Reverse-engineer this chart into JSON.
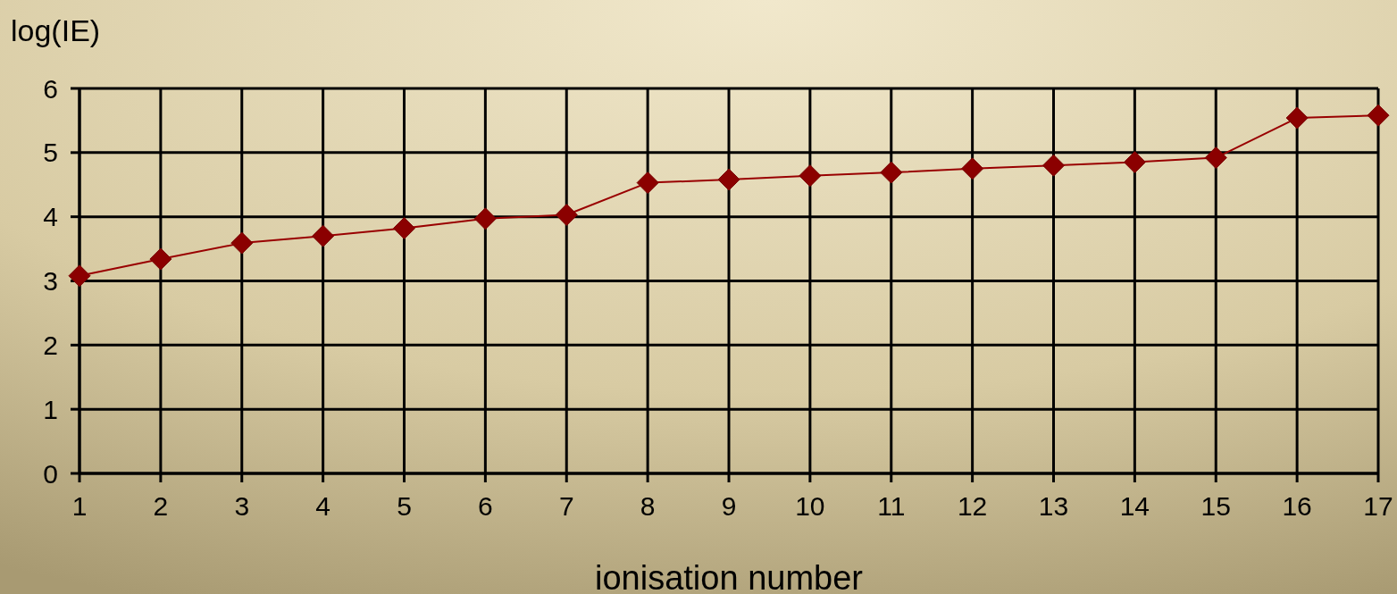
{
  "chart_data": {
    "type": "line",
    "xlabel": "ionisation number",
    "ylabel": "log(IE)",
    "x": [
      1,
      2,
      3,
      4,
      5,
      6,
      7,
      8,
      9,
      10,
      11,
      12,
      13,
      14,
      15,
      16,
      17
    ],
    "series": [
      {
        "color": "#990000",
        "values": [
          3.08,
          3.34,
          3.59,
          3.7,
          3.82,
          3.97,
          4.03,
          4.53,
          4.58,
          4.64,
          4.69,
          4.75,
          4.8,
          4.85,
          4.92,
          5.54,
          5.58
        ]
      }
    ],
    "xlim": [
      1,
      17
    ],
    "xticks": [
      1,
      2,
      3,
      4,
      5,
      6,
      7,
      8,
      9,
      10,
      11,
      12,
      13,
      14,
      15,
      16,
      17
    ],
    "ylim": [
      0,
      6
    ],
    "yticks": [
      0,
      1,
      2,
      3,
      4,
      5,
      6
    ],
    "grid": true,
    "marker": "diamond",
    "line_style": "solid"
  }
}
